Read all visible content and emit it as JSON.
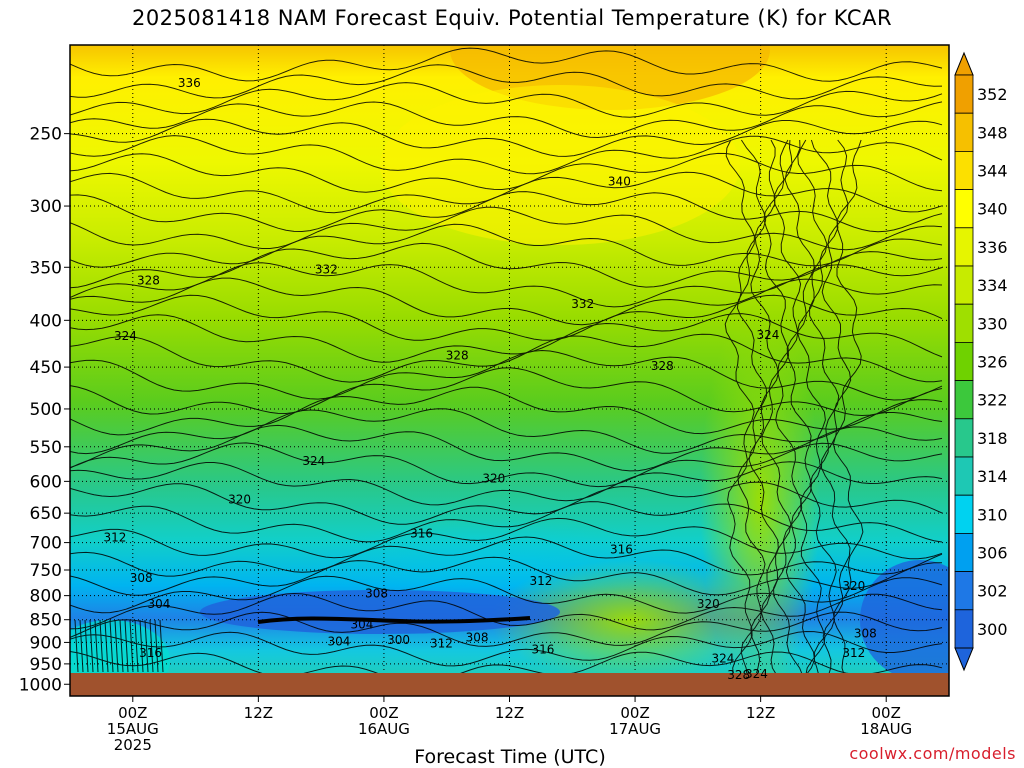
{
  "title": "2025081418 NAM Forecast Equiv. Potential Temperature (K) for KCAR",
  "xlabel": "Forecast Time (UTC)",
  "credit": "coolwx.com/models",
  "chart_data": {
    "type": "heatmap",
    "title": "2025081418 NAM Forecast Equiv. Potential Temperature (K) for KCAR",
    "xlabel": "Forecast Time (UTC)",
    "ylabel": "",
    "x_ticks": [
      {
        "hour": 6,
        "lines": [
          "00Z",
          "15AUG",
          "2025"
        ]
      },
      {
        "hour": 18,
        "lines": [
          "12Z"
        ]
      },
      {
        "hour": 30,
        "lines": [
          "00Z",
          "16AUG"
        ]
      },
      {
        "hour": 42,
        "lines": [
          "12Z"
        ]
      },
      {
        "hour": 54,
        "lines": [
          "00Z",
          "17AUG"
        ]
      },
      {
        "hour": 66,
        "lines": [
          "12Z"
        ]
      },
      {
        "hour": 78,
        "lines": [
          "00Z",
          "18AUG"
        ]
      }
    ],
    "xlim": [
      0,
      84
    ],
    "y_ticks": [
      250,
      300,
      350,
      400,
      450,
      500,
      550,
      600,
      650,
      700,
      750,
      800,
      850,
      900,
      950,
      1000
    ],
    "ylim": [
      1030,
      200
    ],
    "y_scale": "log-pressure (inverted)",
    "grid": true,
    "colorbar": {
      "labels": [
        352,
        348,
        344,
        340,
        336,
        334,
        330,
        326,
        322,
        318,
        314,
        310,
        306,
        302,
        300
      ],
      "colors": [
        "#f0a000",
        "#f6c000",
        "#fce000",
        "#ffff00",
        "#e6f500",
        "#c7eb00",
        "#9fdf00",
        "#6fd200",
        "#3cc83c",
        "#28c88c",
        "#1ec8b4",
        "#00d2f0",
        "#00a0f0",
        "#1e78e6",
        "#1e64dc"
      ]
    },
    "contour_labels": [
      {
        "text": "336",
        "hour": 11.4,
        "p": 220
      },
      {
        "text": "328",
        "hour": 7.5,
        "p": 362
      },
      {
        "text": "332",
        "hour": 24.5,
        "p": 352
      },
      {
        "text": "324",
        "hour": 5.3,
        "p": 416
      },
      {
        "text": "328",
        "hour": 37,
        "p": 437
      },
      {
        "text": "332",
        "hour": 49,
        "p": 384
      },
      {
        "text": "340",
        "hour": 52.5,
        "p": 282
      },
      {
        "text": "328",
        "hour": 56.6,
        "p": 449
      },
      {
        "text": "324",
        "hour": 66.7,
        "p": 415
      },
      {
        "text": "324",
        "hour": 23.3,
        "p": 570
      },
      {
        "text": "320",
        "hour": 16.2,
        "p": 628
      },
      {
        "text": "320",
        "hour": 40.5,
        "p": 596
      },
      {
        "text": "316",
        "hour": 33.6,
        "p": 684
      },
      {
        "text": "316",
        "hour": 52.7,
        "p": 712
      },
      {
        "text": "312",
        "hour": 4.3,
        "p": 691
      },
      {
        "text": "308",
        "hour": 6.8,
        "p": 765
      },
      {
        "text": "304",
        "hour": 8.5,
        "p": 817
      },
      {
        "text": "308",
        "hour": 29.3,
        "p": 796
      },
      {
        "text": "304",
        "hour": 27.9,
        "p": 860
      },
      {
        "text": "300",
        "hour": 31.4,
        "p": 894
      },
      {
        "text": "304",
        "hour": 25.7,
        "p": 898
      },
      {
        "text": "312",
        "hour": 35.5,
        "p": 902
      },
      {
        "text": "308",
        "hour": 38.9,
        "p": 889
      },
      {
        "text": "312",
        "hour": 45,
        "p": 771
      },
      {
        "text": "316",
        "hour": 45.2,
        "p": 916
      },
      {
        "text": "316",
        "hour": 7.7,
        "p": 924
      },
      {
        "text": "320",
        "hour": 61,
        "p": 817
      },
      {
        "text": "324",
        "hour": 62.4,
        "p": 937
      },
      {
        "text": "328",
        "hour": 63.9,
        "p": 977
      },
      {
        "text": "324",
        "hour": 65.6,
        "p": 975
      },
      {
        "text": "320",
        "hour": 74.9,
        "p": 781
      },
      {
        "text": "308",
        "hour": 76,
        "p": 880
      },
      {
        "text": "312",
        "hour": 74.9,
        "p": 924
      }
    ]
  }
}
